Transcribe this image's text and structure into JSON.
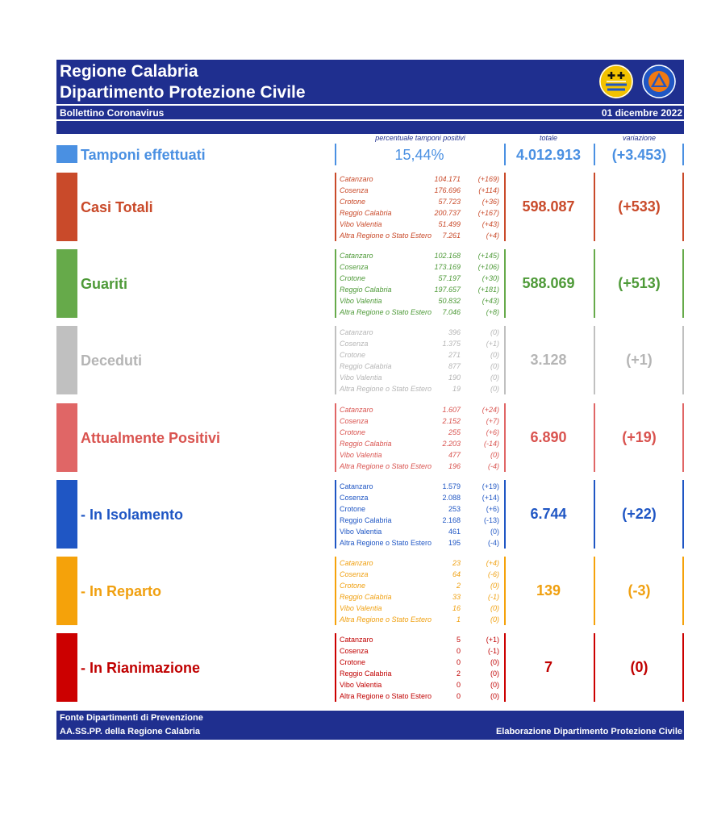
{
  "header": {
    "title_line1": "Regione Calabria",
    "title_line2": "Dipartimento Protezione Civile",
    "subtitle": "Bollettino Coronavirus",
    "date": "01 dicembre 2022"
  },
  "column_headers": {
    "percent": "percentuale tamponi positivi",
    "total": "totale",
    "change": "variazione"
  },
  "tamponi": {
    "label": "Tamponi effettuati",
    "percent": "15,44%",
    "total": "4.012.913",
    "change": "(+3.453)",
    "color": "#4a90e2"
  },
  "sections": [
    {
      "label": "Casi Totali",
      "total": "598.087",
      "change": "(+533)",
      "color": "#c94a2a",
      "text_color": "#c94a2a",
      "italic": true,
      "rows": [
        {
          "name": "Catanzaro",
          "value": "104.171",
          "delta": "(+169)"
        },
        {
          "name": "Cosenza",
          "value": "176.696",
          "delta": "(+114)"
        },
        {
          "name": "Crotone",
          "value": "57.723",
          "delta": "(+36)"
        },
        {
          "name": "Reggio Calabria",
          "value": "200.737",
          "delta": "(+167)"
        },
        {
          "name": "Vibo Valentia",
          "value": "51.499",
          "delta": "(+43)"
        },
        {
          "name": "Altra Regione o Stato Estero",
          "value": "7.261",
          "delta": "(+4)"
        }
      ]
    },
    {
      "label": "Guariti",
      "total": "588.069",
      "change": "(+513)",
      "color": "#66aa4a",
      "text_color": "#4e9a38",
      "italic": true,
      "rows": [
        {
          "name": "Catanzaro",
          "value": "102.168",
          "delta": "(+145)"
        },
        {
          "name": "Cosenza",
          "value": "173.169",
          "delta": "(+106)"
        },
        {
          "name": "Crotone",
          "value": "57.197",
          "delta": "(+30)"
        },
        {
          "name": "Reggio Calabria",
          "value": "197.657",
          "delta": "(+181)"
        },
        {
          "name": "Vibo Valentia",
          "value": "50.832",
          "delta": "(+43)"
        },
        {
          "name": "Altra Regione o Stato Estero",
          "value": "7.046",
          "delta": "(+8)"
        }
      ]
    },
    {
      "label": "Deceduti",
      "total": "3.128",
      "change": "(+1)",
      "color": "#c0c0c0",
      "text_color": "#b5b5b5",
      "italic": true,
      "rows": [
        {
          "name": "Catanzaro",
          "value": "396",
          "delta": "(0)"
        },
        {
          "name": "Cosenza",
          "value": "1.375",
          "delta": "(+1)"
        },
        {
          "name": "Crotone",
          "value": "271",
          "delta": "(0)"
        },
        {
          "name": "Reggio Calabria",
          "value": "877",
          "delta": "(0)"
        },
        {
          "name": "Vibo Valentia",
          "value": "190",
          "delta": "(0)"
        },
        {
          "name": "Altra Regione o Stato Estero",
          "value": "19",
          "delta": "(0)"
        }
      ]
    },
    {
      "label": "Attualmente Positivi",
      "total": "6.890",
      "change": "(+19)",
      "color": "#e06666",
      "text_color": "#d9534f",
      "italic": true,
      "rows": [
        {
          "name": "Catanzaro",
          "value": "1.607",
          "delta": "(+24)"
        },
        {
          "name": "Cosenza",
          "value": "2.152",
          "delta": "(+7)"
        },
        {
          "name": "Crotone",
          "value": "255",
          "delta": "(+6)"
        },
        {
          "name": "Reggio Calabria",
          "value": "2.203",
          "delta": "(-14)"
        },
        {
          "name": "Vibo Valentia",
          "value": "477",
          "delta": "(0)"
        },
        {
          "name": "Altra Regione o Stato Estero",
          "value": "196",
          "delta": "(-4)"
        }
      ]
    },
    {
      "label": "- In Isolamento",
      "total": "6.744",
      "change": "(+22)",
      "color": "#1f56c4",
      "text_color": "#1f56c4",
      "italic": false,
      "rows": [
        {
          "name": "Catanzaro",
          "value": "1.579",
          "delta": "(+19)"
        },
        {
          "name": "Cosenza",
          "value": "2.088",
          "delta": "(+14)"
        },
        {
          "name": "Crotone",
          "value": "253",
          "delta": "(+6)"
        },
        {
          "name": "Reggio Calabria",
          "value": "2.168",
          "delta": "(-13)"
        },
        {
          "name": "Vibo Valentia",
          "value": "461",
          "delta": "(0)"
        },
        {
          "name": "Altra Regione o Stato Estero",
          "value": "195",
          "delta": "(-4)"
        }
      ]
    },
    {
      "label": "- In Reparto",
      "total": "139",
      "change": "(-3)",
      "color": "#f5a20a",
      "text_color": "#f0a010",
      "italic": true,
      "rows": [
        {
          "name": "Catanzaro",
          "value": "23",
          "delta": "(+4)"
        },
        {
          "name": "Cosenza",
          "value": "64",
          "delta": "(-6)"
        },
        {
          "name": "Crotone",
          "value": "2",
          "delta": "(0)"
        },
        {
          "name": "Reggio Calabria",
          "value": "33",
          "delta": "(-1)"
        },
        {
          "name": "Vibo Valentia",
          "value": "16",
          "delta": "(0)"
        },
        {
          "name": "Altra Regione o Stato Estero",
          "value": "1",
          "delta": "(0)"
        }
      ]
    },
    {
      "label": "- In Rianimazione",
      "total": "7",
      "change": "(0)",
      "color": "#cc0000",
      "text_color": "#c00000",
      "italic": false,
      "rows": [
        {
          "name": "Catanzaro",
          "value": "5",
          "delta": "(+1)"
        },
        {
          "name": "Cosenza",
          "value": "0",
          "delta": "(-1)"
        },
        {
          "name": "Crotone",
          "value": "0",
          "delta": "(0)"
        },
        {
          "name": "Reggio Calabria",
          "value": "2",
          "delta": "(0)"
        },
        {
          "name": "Vibo Valentia",
          "value": "0",
          "delta": "(0)"
        },
        {
          "name": "Altra Regione o Stato Estero",
          "value": "0",
          "delta": "(0)"
        }
      ]
    }
  ],
  "footer": {
    "line1": "Fonte Dipartimenti di Prevenzione",
    "line2": "AA.SS.PP.  della Regione Calabria",
    "right": "Elaborazione Dipartimento Protezione Civile"
  }
}
